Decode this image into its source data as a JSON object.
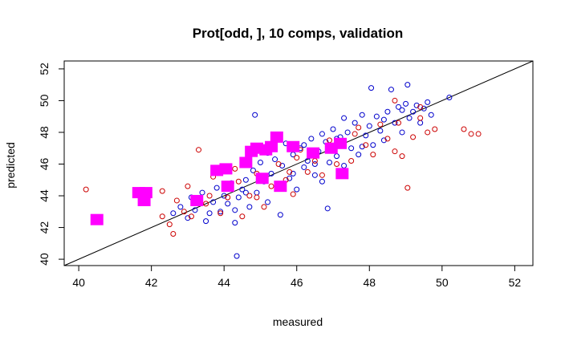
{
  "chart_data": {
    "type": "scatter",
    "title": "Prot[odd, ], 10 comps, validation",
    "xlabel": "measured",
    "ylabel": "predicted",
    "xlim": [
      39.6,
      52.5
    ],
    "ylim": [
      39.6,
      52.5
    ],
    "xticks": [
      "40",
      "42",
      "44",
      "46",
      "48",
      "50",
      "52"
    ],
    "yticks": [
      "40",
      "42",
      "44",
      "46",
      "48",
      "50",
      "52"
    ],
    "grid": false,
    "reference_line": {
      "slope": 1,
      "intercept": 0
    },
    "series": [
      {
        "color": "#0000cc",
        "marker": "open-circle",
        "points": [
          [
            42.6,
            42.9
          ],
          [
            42.8,
            43.3
          ],
          [
            43.0,
            42.6
          ],
          [
            43.2,
            43.1
          ],
          [
            43.3,
            43.8
          ],
          [
            43.4,
            44.2
          ],
          [
            43.5,
            42.4
          ],
          [
            43.6,
            42.9
          ],
          [
            43.7,
            43.6
          ],
          [
            43.8,
            44.5
          ],
          [
            43.9,
            43.0
          ],
          [
            44.0,
            44.0
          ],
          [
            44.1,
            43.5
          ],
          [
            44.2,
            44.8
          ],
          [
            44.3,
            42.3
          ],
          [
            44.35,
            40.2
          ],
          [
            44.4,
            43.9
          ],
          [
            44.5,
            44.4
          ],
          [
            44.6,
            45.0
          ],
          [
            44.7,
            43.3
          ],
          [
            44.8,
            45.6
          ],
          [
            44.85,
            49.1
          ],
          [
            44.9,
            44.2
          ],
          [
            45.0,
            46.1
          ],
          [
            45.1,
            44.9
          ],
          [
            45.2,
            43.6
          ],
          [
            45.3,
            45.4
          ],
          [
            45.4,
            46.3
          ],
          [
            45.5,
            44.6
          ],
          [
            45.55,
            42.8
          ],
          [
            45.6,
            45.9
          ],
          [
            45.7,
            47.3
          ],
          [
            45.8,
            45.1
          ],
          [
            45.9,
            46.6
          ],
          [
            46.0,
            44.4
          ],
          [
            46.1,
            47.0
          ],
          [
            46.2,
            45.8
          ],
          [
            46.3,
            46.2
          ],
          [
            46.4,
            47.6
          ],
          [
            46.5,
            45.3
          ],
          [
            46.6,
            46.8
          ],
          [
            46.7,
            44.9
          ],
          [
            46.8,
            47.4
          ],
          [
            46.85,
            43.2
          ],
          [
            46.9,
            46.1
          ],
          [
            47.0,
            48.2
          ],
          [
            47.1,
            46.5
          ],
          [
            47.2,
            47.7
          ],
          [
            47.3,
            45.9
          ],
          [
            47.4,
            48.0
          ],
          [
            47.5,
            47.0
          ],
          [
            47.6,
            48.6
          ],
          [
            47.7,
            46.6
          ],
          [
            47.8,
            49.1
          ],
          [
            47.9,
            47.8
          ],
          [
            48.0,
            48.4
          ],
          [
            48.05,
            50.8
          ],
          [
            48.1,
            47.2
          ],
          [
            48.2,
            49.0
          ],
          [
            48.3,
            48.1
          ],
          [
            48.4,
            47.5
          ],
          [
            48.5,
            49.3
          ],
          [
            48.6,
            50.7
          ],
          [
            48.7,
            48.6
          ],
          [
            48.8,
            49.6
          ],
          [
            48.9,
            48.0
          ],
          [
            49.0,
            49.8
          ],
          [
            49.05,
            51.0
          ],
          [
            49.1,
            48.9
          ],
          [
            49.2,
            49.3
          ],
          [
            49.3,
            49.7
          ],
          [
            49.4,
            48.6
          ],
          [
            49.5,
            49.5
          ],
          [
            49.6,
            49.9
          ],
          [
            49.7,
            49.1
          ],
          [
            50.2,
            50.2
          ],
          [
            46.7,
            47.9
          ],
          [
            47.3,
            48.9
          ],
          [
            45.2,
            46.7
          ],
          [
            44.0,
            45.6
          ],
          [
            43.1,
            43.9
          ],
          [
            44.6,
            44.2
          ],
          [
            46.2,
            47.2
          ],
          [
            47.8,
            47.1
          ],
          [
            48.4,
            48.8
          ],
          [
            45.9,
            45.4
          ],
          [
            44.3,
            43.1
          ],
          [
            46.5,
            46.0
          ],
          [
            47.1,
            47.6
          ],
          [
            48.9,
            49.4
          ]
        ]
      },
      {
        "color": "#cc0000",
        "marker": "open-circle",
        "points": [
          [
            40.2,
            44.4
          ],
          [
            42.3,
            42.7
          ],
          [
            42.5,
            42.2
          ],
          [
            42.6,
            41.6
          ],
          [
            42.7,
            43.7
          ],
          [
            42.9,
            43.0
          ],
          [
            43.1,
            42.7
          ],
          [
            43.3,
            46.9
          ],
          [
            43.5,
            43.5
          ],
          [
            43.7,
            45.2
          ],
          [
            43.9,
            42.9
          ],
          [
            44.1,
            43.9
          ],
          [
            44.3,
            45.7
          ],
          [
            44.5,
            42.7
          ],
          [
            44.7,
            44.0
          ],
          [
            44.9,
            45.4
          ],
          [
            45.1,
            43.3
          ],
          [
            45.3,
            44.6
          ],
          [
            45.5,
            46.0
          ],
          [
            45.7,
            45.0
          ],
          [
            45.9,
            44.1
          ],
          [
            46.1,
            46.9
          ],
          [
            46.3,
            45.5
          ],
          [
            46.5,
            46.2
          ],
          [
            46.7,
            45.3
          ],
          [
            46.9,
            47.5
          ],
          [
            47.1,
            46.0
          ],
          [
            47.3,
            47.4
          ],
          [
            47.5,
            46.2
          ],
          [
            47.7,
            48.3
          ],
          [
            47.9,
            47.2
          ],
          [
            48.1,
            46.6
          ],
          [
            48.3,
            48.5
          ],
          [
            48.5,
            47.6
          ],
          [
            48.7,
            46.8
          ],
          [
            48.9,
            46.5
          ],
          [
            49.05,
            44.5
          ],
          [
            49.2,
            47.7
          ],
          [
            49.4,
            48.9
          ],
          [
            49.6,
            48.0
          ],
          [
            49.8,
            48.2
          ],
          [
            50.6,
            48.2
          ],
          [
            50.8,
            47.9
          ],
          [
            51.0,
            47.9
          ],
          [
            48.7,
            50.0
          ],
          [
            49.4,
            49.6
          ],
          [
            42.3,
            44.3
          ],
          [
            43.0,
            44.6
          ],
          [
            44.4,
            44.9
          ],
          [
            45.8,
            45.5
          ],
          [
            47.6,
            47.9
          ],
          [
            48.8,
            48.6
          ],
          [
            46.0,
            46.4
          ],
          [
            44.9,
            43.9
          ],
          [
            43.6,
            44.0
          ]
        ]
      },
      {
        "color": "#ff00ff",
        "marker": "filled-square",
        "points": [
          [
            40.5,
            42.5
          ],
          [
            41.65,
            44.2
          ],
          [
            41.8,
            43.7
          ],
          [
            41.85,
            44.2
          ],
          [
            43.25,
            43.7
          ],
          [
            43.8,
            45.6
          ],
          [
            44.05,
            45.7
          ],
          [
            44.1,
            44.6
          ],
          [
            44.6,
            46.1
          ],
          [
            44.75,
            46.8
          ],
          [
            44.9,
            47.0
          ],
          [
            45.05,
            45.1
          ],
          [
            45.15,
            46.9
          ],
          [
            45.3,
            47.1
          ],
          [
            45.45,
            47.7
          ],
          [
            45.55,
            44.6
          ],
          [
            45.9,
            47.1
          ],
          [
            46.45,
            46.7
          ],
          [
            46.95,
            47.0
          ],
          [
            47.2,
            47.3
          ],
          [
            47.25,
            45.4
          ]
        ]
      }
    ]
  }
}
